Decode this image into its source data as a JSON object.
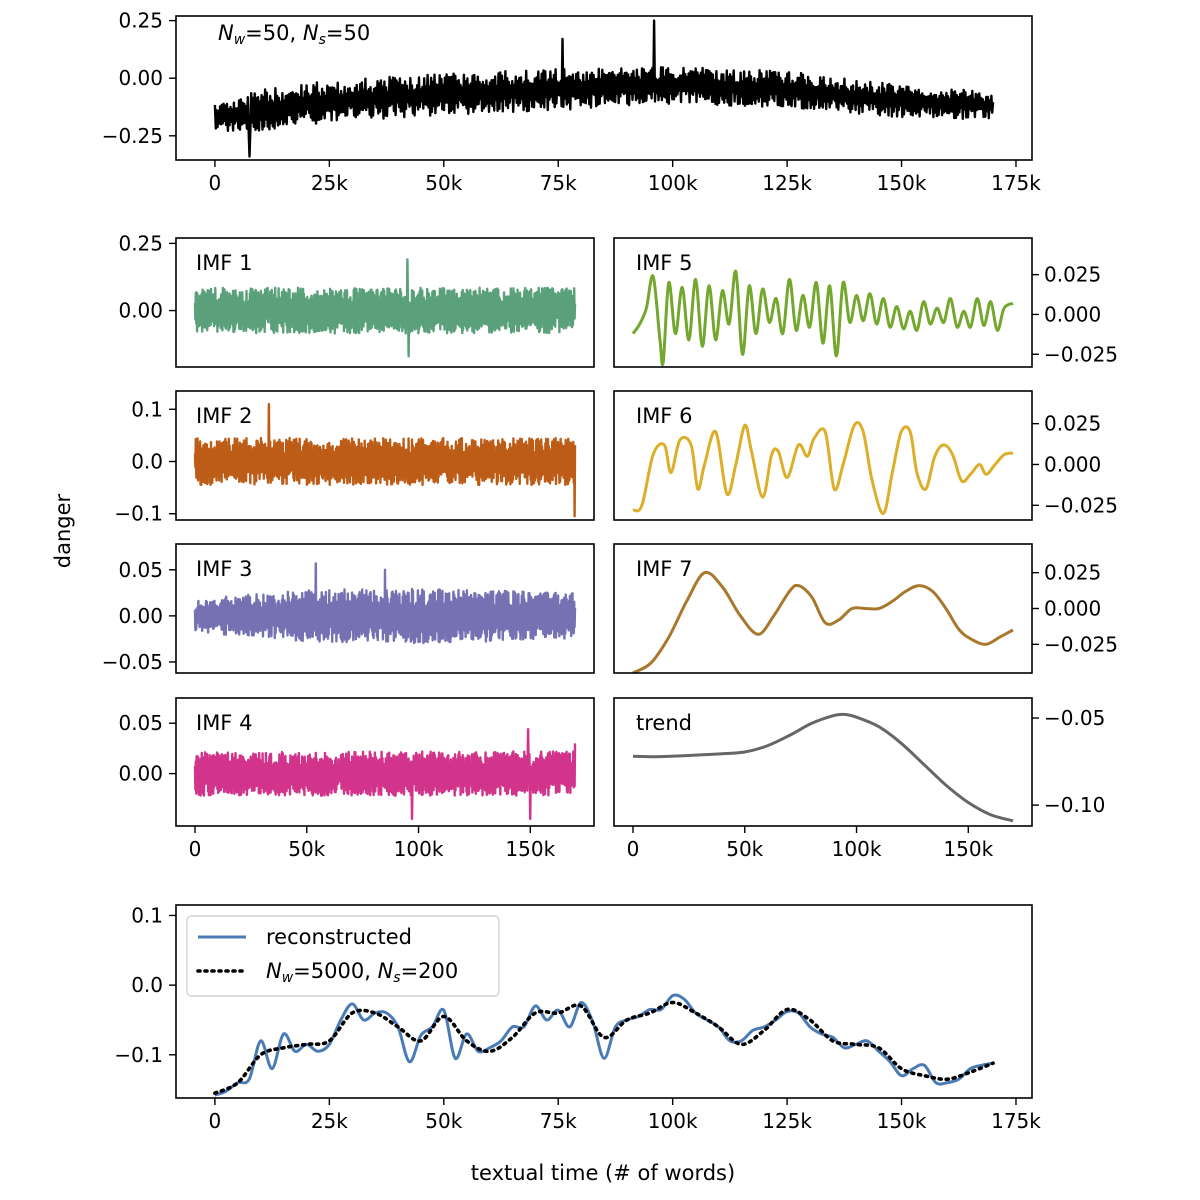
{
  "figure": {
    "ylabel": "danger",
    "xlabel": "textual time (# of words)"
  },
  "chart_data": [
    {
      "id": "raw",
      "type": "line",
      "title": "",
      "annotation": {
        "var1": "N",
        "sub1": "w",
        "val1": "=50, ",
        "var2": "N",
        "sub2": "s",
        "val2": "=50"
      },
      "color": "#000000",
      "x_range": [
        0,
        170000
      ],
      "xlim": [
        -8500,
        178500
      ],
      "ylim": [
        -0.355,
        0.27
      ],
      "x_ticks": [
        0,
        25000,
        50000,
        75000,
        100000,
        125000,
        150000,
        175000
      ],
      "x_tick_labels": [
        "0",
        "25k",
        "50k",
        "75k",
        "100k",
        "125k",
        "150k",
        "175k"
      ],
      "y_ticks": [
        0.25,
        0.0,
        -0.25
      ],
      "y_tick_labels": [
        "0.25",
        "0.00",
        "−0.25"
      ],
      "envelope": {
        "x": [
          0,
          10000,
          25000,
          50000,
          75000,
          100000,
          125000,
          150000,
          170000
        ],
        "mean": [
          -0.17,
          -0.14,
          -0.1,
          -0.07,
          -0.05,
          -0.03,
          -0.05,
          -0.1,
          -0.12
        ],
        "amplitude": [
          0.06,
          0.09,
          0.09,
          0.09,
          0.09,
          0.08,
          0.08,
          0.07,
          0.06
        ]
      },
      "spikes": [
        {
          "x": 7500,
          "y": -0.34
        },
        {
          "x": 76000,
          "y": 0.17
        },
        {
          "x": 96000,
          "y": 0.25
        }
      ]
    },
    {
      "id": "imf1",
      "type": "line",
      "label": "IMF 1",
      "color": "#5aa07a",
      "x_range": [
        0,
        170000
      ],
      "xlim": [
        -8500,
        178500
      ],
      "ylim": [
        -0.21,
        0.27
      ],
      "y_ticks": [
        0.25,
        0.0
      ],
      "y_tick_labels": [
        "0.25",
        "0.00"
      ],
      "envelope": {
        "x": [
          0,
          170000
        ],
        "mean": [
          0,
          0
        ],
        "amplitude": [
          0.085,
          0.085
        ]
      },
      "spikes": [
        {
          "x": 95000,
          "y": 0.19
        },
        {
          "x": 95500,
          "y": -0.17
        }
      ]
    },
    {
      "id": "imf2",
      "type": "line",
      "label": "IMF 2",
      "color": "#bd5c17",
      "x_range": [
        0,
        170000
      ],
      "xlim": [
        -8500,
        178500
      ],
      "ylim": [
        -0.112,
        0.135
      ],
      "y_ticks": [
        0.1,
        0.0,
        -0.1
      ],
      "y_tick_labels": [
        "0.1",
        "0.0",
        "−0.1"
      ],
      "envelope": {
        "x": [
          0,
          170000
        ],
        "mean": [
          0,
          0
        ],
        "amplitude": [
          0.045,
          0.045
        ]
      },
      "spikes": [
        {
          "x": 33000,
          "y": 0.11
        },
        {
          "x": 169800,
          "y": -0.105
        }
      ]
    },
    {
      "id": "imf3",
      "type": "line",
      "label": "IMF 3",
      "color": "#7571b3",
      "x_range": [
        0,
        170000
      ],
      "xlim": [
        -8500,
        178500
      ],
      "ylim": [
        -0.062,
        0.078
      ],
      "y_ticks": [
        0.05,
        0.0,
        -0.05
      ],
      "y_tick_labels": [
        "0.05",
        "0.00",
        "−0.05"
      ],
      "envelope": {
        "x": [
          0,
          50000,
          100000,
          170000
        ],
        "mean": [
          0,
          0,
          0,
          0
        ],
        "amplitude": [
          0.018,
          0.028,
          0.03,
          0.025
        ]
      },
      "spikes": [
        {
          "x": 54000,
          "y": 0.057
        },
        {
          "x": 85000,
          "y": 0.05
        }
      ]
    },
    {
      "id": "imf4",
      "type": "line",
      "label": "IMF 4",
      "color": "#d1348a",
      "x_range": [
        0,
        170000
      ],
      "xlim": [
        -8500,
        178500
      ],
      "ylim": [
        -0.052,
        0.075
      ],
      "y_ticks": [
        0.05,
        0.0
      ],
      "y_tick_labels": [
        "0.05",
        "0.00"
      ],
      "envelope": {
        "x": [
          0,
          170000
        ],
        "mean": [
          0,
          0
        ],
        "amplitude": [
          0.022,
          0.022
        ]
      },
      "spikes": [
        {
          "x": 149000,
          "y": 0.044
        },
        {
          "x": 150000,
          "y": -0.045
        },
        {
          "x": 97000,
          "y": -0.045
        },
        {
          "x": 170000,
          "y": 0.03
        }
      ]
    },
    {
      "id": "imf5",
      "type": "line",
      "label": "IMF 5",
      "color": "#73a72d",
      "x_range": [
        0,
        170000
      ],
      "xlim": [
        -8500,
        178500
      ],
      "ylim": [
        -0.033,
        0.048
      ],
      "y_ticks": [
        0.025,
        0.0,
        -0.025
      ],
      "y_tick_labels": [
        "0.025",
        "0.000",
        "−0.025"
      ],
      "points": {
        "x": [
          0,
          3000,
          6000,
          9000,
          12000,
          13500,
          16000,
          19000,
          22000,
          25000,
          28000,
          31000,
          34000,
          37000,
          40000,
          43000,
          46000,
          49000,
          52000,
          55000,
          58000,
          61000,
          64000,
          67000,
          70000,
          73000,
          76000,
          79000,
          82000,
          85000,
          88000,
          91000,
          94000,
          97000,
          100000,
          103000,
          106000,
          109000,
          112000,
          115000,
          118000,
          121000,
          124000,
          127000,
          130000,
          133000,
          136000,
          139000,
          142000,
          145000,
          148000,
          151000,
          154000,
          157000,
          160000,
          163000,
          166000,
          170000
        ],
        "y": [
          -0.012,
          -0.006,
          0.004,
          0.024,
          -0.015,
          -0.03,
          0.02,
          -0.012,
          0.017,
          -0.016,
          0.022,
          -0.02,
          0.018,
          -0.016,
          0.015,
          -0.006,
          0.027,
          -0.025,
          0.018,
          -0.012,
          0.016,
          -0.005,
          0.01,
          -0.012,
          0.022,
          -0.01,
          0.012,
          -0.008,
          0.02,
          -0.018,
          0.018,
          -0.026,
          0.02,
          -0.005,
          0.012,
          -0.004,
          0.013,
          -0.006,
          0.01,
          -0.008,
          0.005,
          -0.009,
          0.002,
          -0.01,
          0.008,
          -0.006,
          0.004,
          -0.005,
          0.01,
          -0.008,
          0.002,
          -0.008,
          0.01,
          -0.007,
          0.008,
          -0.01,
          0.004,
          0.007
        ]
      }
    },
    {
      "id": "imf6",
      "type": "line",
      "label": "IMF 6",
      "color": "#dcae29",
      "x_range": [
        0,
        170000
      ],
      "xlim": [
        -8500,
        178500
      ],
      "ylim": [
        -0.034,
        0.045
      ],
      "y_ticks": [
        0.025,
        0.0,
        -0.025
      ],
      "y_tick_labels": [
        "0.025",
        "0.000",
        "−0.025"
      ],
      "points": {
        "x": [
          0,
          4000,
          9000,
          14000,
          17000,
          21000,
          26000,
          29000,
          32000,
          37000,
          42000,
          46000,
          50000,
          53000,
          58000,
          62000,
          65000,
          69000,
          74000,
          78000,
          81000,
          86000,
          90000,
          94000,
          99000,
          103000,
          107000,
          112000,
          116000,
          120000,
          124000,
          127000,
          131000,
          135000,
          139000,
          143000,
          147000,
          151000,
          155000,
          158000,
          162000,
          166000,
          170000
        ],
        "y": [
          -0.028,
          -0.025,
          0.006,
          0.012,
          -0.005,
          0.015,
          0.012,
          -0.015,
          0.0,
          0.02,
          -0.018,
          0.0,
          0.024,
          0.008,
          -0.02,
          0.006,
          0.008,
          -0.008,
          0.012,
          0.005,
          0.016,
          0.02,
          -0.015,
          0.0,
          0.024,
          0.02,
          -0.01,
          -0.03,
          -0.005,
          0.02,
          0.02,
          -0.005,
          -0.015,
          0.005,
          0.012,
          0.006,
          -0.01,
          -0.006,
          0.0,
          -0.006,
          0.0,
          0.006,
          0.007
        ]
      }
    },
    {
      "id": "imf7",
      "type": "line",
      "label": "IMF 7",
      "color": "#a8782c",
      "x_range": [
        0,
        170000
      ],
      "xlim": [
        -8500,
        178500
      ],
      "ylim": [
        -0.045,
        0.045
      ],
      "y_ticks": [
        0.025,
        0.0,
        -0.025
      ],
      "y_tick_labels": [
        "0.025",
        "0.000",
        "−0.025"
      ],
      "points": {
        "x": [
          0,
          8000,
          16000,
          24000,
          32000,
          40000,
          48000,
          56000,
          63000,
          70000,
          74000,
          80000,
          86000,
          92000,
          98000,
          104000,
          110000,
          116000,
          122000,
          128000,
          134000,
          140000,
          146000,
          152000,
          158000,
          164000,
          170000
        ],
        "y": [
          -0.045,
          -0.038,
          -0.02,
          0.005,
          0.025,
          0.015,
          -0.005,
          -0.018,
          -0.005,
          0.012,
          0.016,
          0.008,
          -0.01,
          -0.008,
          0.0,
          0.0,
          0.0,
          0.005,
          0.012,
          0.016,
          0.012,
          0.0,
          -0.015,
          -0.022,
          -0.025,
          -0.02,
          -0.015
        ]
      }
    },
    {
      "id": "trend",
      "type": "line",
      "label": "trend",
      "color": "#666666",
      "x_range": [
        0,
        170000
      ],
      "xlim": [
        -8500,
        178500
      ],
      "ylim": [
        -0.112,
        -0.0385
      ],
      "y_ticks": [
        -0.05,
        -0.1
      ],
      "y_tick_labels": [
        "−0.05",
        "−0.10"
      ],
      "points": {
        "x": [
          0,
          10000,
          20000,
          30000,
          40000,
          50000,
          60000,
          70000,
          80000,
          90000,
          95000,
          100000,
          110000,
          120000,
          130000,
          140000,
          150000,
          160000,
          170000
        ],
        "y": [
          -0.072,
          -0.0722,
          -0.0718,
          -0.0712,
          -0.0705,
          -0.0695,
          -0.066,
          -0.06,
          -0.053,
          -0.0485,
          -0.048,
          -0.0495,
          -0.055,
          -0.0645,
          -0.0765,
          -0.0885,
          -0.0985,
          -0.1055,
          -0.109
        ]
      }
    },
    {
      "id": "reconstructed",
      "type": "line",
      "x_range": [
        0,
        170000
      ],
      "xlim": [
        -8500,
        178500
      ],
      "ylim": [
        -0.162,
        0.115
      ],
      "x_ticks": [
        0,
        25000,
        50000,
        75000,
        100000,
        125000,
        150000,
        175000
      ],
      "x_tick_labels": [
        "0",
        "25k",
        "50k",
        "75k",
        "100k",
        "125k",
        "150k",
        "175k"
      ],
      "y_ticks": [
        0.1,
        0.0,
        -0.1
      ],
      "y_tick_labels": [
        "0.1",
        "0.0",
        "−0.1"
      ],
      "legend": {
        "position": "top-left",
        "entry1": "reconstructed",
        "entry2": {
          "var1": "N",
          "sub1": "w",
          "val1": "=5000, ",
          "var2": "N",
          "sub2": "s",
          "val2": "=200"
        }
      },
      "series": [
        {
          "name": "reconstructed",
          "color": "#4a7bb5",
          "style": "solid",
          "x": [
            0,
            2500,
            5000,
            7500,
            10000,
            12500,
            15000,
            17500,
            20000,
            22500,
            25000,
            27500,
            30000,
            32500,
            35000,
            37500,
            40000,
            42500,
            45000,
            47500,
            50000,
            52500,
            55000,
            57500,
            60000,
            62500,
            65000,
            67500,
            70000,
            72500,
            75000,
            77500,
            80000,
            82500,
            85000,
            87500,
            90000,
            92500,
            95000,
            97500,
            100000,
            102500,
            105000,
            107500,
            110000,
            112500,
            115000,
            117500,
            120000,
            122500,
            125000,
            127500,
            130000,
            132500,
            135000,
            137500,
            140000,
            142500,
            145000,
            147500,
            150000,
            152500,
            155000,
            157500,
            160000,
            162500,
            165000,
            167500,
            170000
          ],
          "y": [
            -0.158,
            -0.152,
            -0.14,
            -0.135,
            -0.08,
            -0.12,
            -0.07,
            -0.095,
            -0.085,
            -0.095,
            -0.085,
            -0.05,
            -0.027,
            -0.05,
            -0.04,
            -0.04,
            -0.06,
            -0.11,
            -0.072,
            -0.06,
            -0.036,
            -0.105,
            -0.07,
            -0.095,
            -0.09,
            -0.08,
            -0.06,
            -0.06,
            -0.03,
            -0.05,
            -0.036,
            -0.06,
            -0.025,
            -0.052,
            -0.105,
            -0.06,
            -0.05,
            -0.045,
            -0.035,
            -0.035,
            -0.015,
            -0.02,
            -0.04,
            -0.05,
            -0.06,
            -0.08,
            -0.08,
            -0.065,
            -0.06,
            -0.05,
            -0.038,
            -0.04,
            -0.06,
            -0.07,
            -0.075,
            -0.09,
            -0.085,
            -0.08,
            -0.095,
            -0.11,
            -0.13,
            -0.12,
            -0.115,
            -0.14,
            -0.14,
            -0.135,
            -0.12,
            -0.115,
            -0.112
          ]
        },
        {
          "name": "Nw=5000, Ns=200",
          "color": "#000000",
          "style": "dotted",
          "x": [
            0,
            5000,
            10000,
            15000,
            20000,
            25000,
            30000,
            35000,
            40000,
            45000,
            50000,
            55000,
            60000,
            65000,
            70000,
            75000,
            80000,
            85000,
            90000,
            95000,
            100000,
            105000,
            110000,
            115000,
            120000,
            125000,
            130000,
            135000,
            140000,
            145000,
            150000,
            155000,
            160000,
            165000,
            170000
          ],
          "y": [
            -0.155,
            -0.14,
            -0.1,
            -0.09,
            -0.085,
            -0.08,
            -0.04,
            -0.04,
            -0.06,
            -0.08,
            -0.045,
            -0.08,
            -0.095,
            -0.075,
            -0.04,
            -0.04,
            -0.03,
            -0.075,
            -0.05,
            -0.04,
            -0.025,
            -0.04,
            -0.06,
            -0.085,
            -0.065,
            -0.035,
            -0.05,
            -0.08,
            -0.085,
            -0.09,
            -0.12,
            -0.13,
            -0.135,
            -0.125,
            -0.112
          ]
        }
      ]
    }
  ]
}
